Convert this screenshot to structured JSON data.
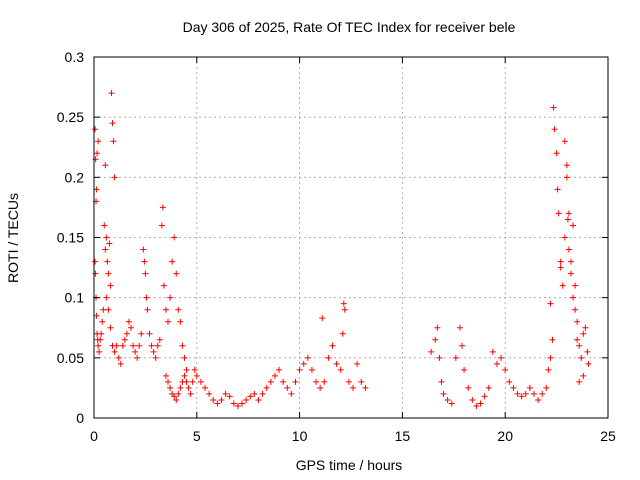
{
  "chart_data": {
    "type": "scatter",
    "title": "Day 306 of 2025, Rate Of TEC Index for receiver bele",
    "xlabel": "GPS time / hours",
    "ylabel": "ROTI / TECUs",
    "xlim": [
      0,
      25
    ],
    "ylim": [
      0,
      0.3
    ],
    "xticks": [
      0,
      5,
      10,
      15,
      20,
      25
    ],
    "yticks": [
      0,
      0.05,
      0.1,
      0.15,
      0.2,
      0.25,
      0.3
    ],
    "xtick_labels": [
      "0",
      "5",
      "10",
      "15",
      "20",
      "25"
    ],
    "ytick_labels": [
      "0",
      "0.05",
      "0.1",
      "0.15",
      "0.2",
      "0.25",
      "0.3"
    ],
    "grid": true,
    "marker": "plus",
    "color": "#ff0000",
    "points": [
      [
        0.05,
        0.24
      ],
      [
        0.08,
        0.215
      ],
      [
        0.1,
        0.18
      ],
      [
        0.12,
        0.19
      ],
      [
        0.15,
        0.22
      ],
      [
        0.2,
        0.23
      ],
      [
        0.05,
        0.13
      ],
      [
        0.07,
        0.12
      ],
      [
        0.1,
        0.1
      ],
      [
        0.12,
        0.085
      ],
      [
        0.15,
        0.07
      ],
      [
        0.18,
        0.065
      ],
      [
        0.2,
        0.06
      ],
      [
        0.25,
        0.055
      ],
      [
        0.3,
        0.065
      ],
      [
        0.35,
        0.07
      ],
      [
        0.4,
        0.08
      ],
      [
        0.45,
        0.09
      ],
      [
        0.5,
        0.16
      ],
      [
        0.55,
        0.14
      ],
      [
        0.6,
        0.15
      ],
      [
        0.65,
        0.13
      ],
      [
        0.7,
        0.12
      ],
      [
        0.75,
        0.145
      ],
      [
        0.8,
        0.11
      ],
      [
        0.85,
        0.27
      ],
      [
        0.9,
        0.245
      ],
      [
        0.95,
        0.23
      ],
      [
        1.0,
        0.2
      ],
      [
        0.55,
        0.21
      ],
      [
        0.6,
        0.1
      ],
      [
        0.7,
        0.09
      ],
      [
        0.8,
        0.075
      ],
      [
        0.9,
        0.06
      ],
      [
        1.0,
        0.055
      ],
      [
        1.1,
        0.06
      ],
      [
        1.2,
        0.05
      ],
      [
        1.3,
        0.045
      ],
      [
        1.4,
        0.06
      ],
      [
        1.5,
        0.065
      ],
      [
        1.6,
        0.07
      ],
      [
        1.7,
        0.08
      ],
      [
        1.8,
        0.075
      ],
      [
        1.9,
        0.06
      ],
      [
        2.0,
        0.055
      ],
      [
        2.1,
        0.05
      ],
      [
        2.2,
        0.06
      ],
      [
        2.3,
        0.07
      ],
      [
        2.4,
        0.14
      ],
      [
        2.45,
        0.13
      ],
      [
        2.5,
        0.12
      ],
      [
        2.55,
        0.1
      ],
      [
        2.6,
        0.09
      ],
      [
        2.7,
        0.07
      ],
      [
        2.8,
        0.06
      ],
      [
        2.9,
        0.055
      ],
      [
        3.0,
        0.05
      ],
      [
        3.1,
        0.06
      ],
      [
        3.2,
        0.065
      ],
      [
        3.3,
        0.16
      ],
      [
        3.35,
        0.175
      ],
      [
        3.4,
        0.11
      ],
      [
        3.5,
        0.09
      ],
      [
        3.6,
        0.08
      ],
      [
        3.7,
        0.1
      ],
      [
        3.8,
        0.13
      ],
      [
        3.9,
        0.15
      ],
      [
        4.0,
        0.12
      ],
      [
        4.1,
        0.09
      ],
      [
        4.2,
        0.08
      ],
      [
        4.3,
        0.06
      ],
      [
        4.4,
        0.05
      ],
      [
        4.5,
        0.04
      ],
      [
        3.5,
        0.035
      ],
      [
        3.6,
        0.03
      ],
      [
        3.7,
        0.025
      ],
      [
        3.8,
        0.02
      ],
      [
        3.9,
        0.018
      ],
      [
        4.0,
        0.015
      ],
      [
        4.1,
        0.02
      ],
      [
        4.2,
        0.025
      ],
      [
        4.3,
        0.03
      ],
      [
        4.4,
        0.035
      ],
      [
        4.5,
        0.03
      ],
      [
        4.6,
        0.025
      ],
      [
        4.7,
        0.02
      ],
      [
        4.8,
        0.03
      ],
      [
        4.9,
        0.04
      ],
      [
        5.0,
        0.035
      ],
      [
        5.2,
        0.03
      ],
      [
        5.4,
        0.025
      ],
      [
        5.6,
        0.02
      ],
      [
        5.8,
        0.015
      ],
      [
        6.0,
        0.012
      ],
      [
        6.2,
        0.015
      ],
      [
        6.4,
        0.02
      ],
      [
        6.6,
        0.018
      ],
      [
        6.8,
        0.012
      ],
      [
        7.0,
        0.01
      ],
      [
        7.2,
        0.012
      ],
      [
        7.4,
        0.015
      ],
      [
        7.6,
        0.018
      ],
      [
        7.8,
        0.02
      ],
      [
        8.0,
        0.015
      ],
      [
        8.2,
        0.02
      ],
      [
        8.4,
        0.025
      ],
      [
        8.6,
        0.03
      ],
      [
        8.8,
        0.035
      ],
      [
        9.0,
        0.04
      ],
      [
        9.2,
        0.03
      ],
      [
        9.4,
        0.025
      ],
      [
        9.6,
        0.02
      ],
      [
        9.8,
        0.03
      ],
      [
        10.0,
        0.04
      ],
      [
        10.2,
        0.045
      ],
      [
        10.4,
        0.05
      ],
      [
        10.6,
        0.04
      ],
      [
        10.8,
        0.03
      ],
      [
        11.0,
        0.025
      ],
      [
        11.2,
        0.03
      ],
      [
        11.4,
        0.05
      ],
      [
        11.6,
        0.06
      ],
      [
        11.8,
        0.045
      ],
      [
        12.0,
        0.04
      ],
      [
        12.1,
        0.07
      ],
      [
        12.15,
        0.095
      ],
      [
        12.2,
        0.09
      ],
      [
        12.4,
        0.03
      ],
      [
        12.6,
        0.025
      ],
      [
        12.8,
        0.045
      ],
      [
        13.0,
        0.03
      ],
      [
        13.2,
        0.025
      ],
      [
        11.1,
        0.083
      ],
      [
        16.4,
        0.055
      ],
      [
        16.6,
        0.065
      ],
      [
        16.7,
        0.075
      ],
      [
        16.8,
        0.05
      ],
      [
        16.9,
        0.03
      ],
      [
        17.0,
        0.02
      ],
      [
        17.2,
        0.015
      ],
      [
        17.4,
        0.012
      ],
      [
        17.6,
        0.05
      ],
      [
        17.8,
        0.075
      ],
      [
        17.9,
        0.06
      ],
      [
        18.0,
        0.04
      ],
      [
        18.2,
        0.025
      ],
      [
        18.4,
        0.015
      ],
      [
        18.6,
        0.01
      ],
      [
        18.8,
        0.012
      ],
      [
        19.0,
        0.018
      ],
      [
        19.2,
        0.025
      ],
      [
        19.4,
        0.055
      ],
      [
        19.6,
        0.045
      ],
      [
        19.8,
        0.05
      ],
      [
        20.0,
        0.04
      ],
      [
        20.2,
        0.03
      ],
      [
        20.4,
        0.025
      ],
      [
        20.6,
        0.02
      ],
      [
        20.8,
        0.018
      ],
      [
        21.0,
        0.02
      ],
      [
        21.2,
        0.025
      ],
      [
        21.4,
        0.02
      ],
      [
        21.6,
        0.015
      ],
      [
        21.8,
        0.02
      ],
      [
        22.0,
        0.025
      ],
      [
        22.1,
        0.04
      ],
      [
        22.2,
        0.05
      ],
      [
        22.3,
        0.065
      ],
      [
        22.35,
        0.258
      ],
      [
        22.4,
        0.24
      ],
      [
        22.5,
        0.22
      ],
      [
        22.55,
        0.19
      ],
      [
        22.6,
        0.17
      ],
      [
        22.7,
        0.13
      ],
      [
        22.8,
        0.11
      ],
      [
        22.9,
        0.23
      ],
      [
        23.0,
        0.2
      ],
      [
        23.05,
        0.165
      ],
      [
        23.1,
        0.14
      ],
      [
        23.2,
        0.12
      ],
      [
        23.3,
        0.1
      ],
      [
        23.4,
        0.09
      ],
      [
        23.5,
        0.08
      ],
      [
        23.6,
        0.06
      ],
      [
        23.7,
        0.05
      ],
      [
        23.8,
        0.07
      ],
      [
        23.9,
        0.075
      ],
      [
        24.0,
        0.055
      ],
      [
        24.05,
        0.045
      ],
      [
        23.0,
        0.21
      ],
      [
        23.1,
        0.17
      ],
      [
        22.9,
        0.15
      ],
      [
        23.2,
        0.13
      ],
      [
        23.4,
        0.11
      ],
      [
        23.6,
        0.03
      ],
      [
        23.8,
        0.035
      ],
      [
        22.2,
        0.095
      ],
      [
        22.7,
        0.125
      ],
      [
        23.3,
        0.16
      ],
      [
        23.5,
        0.065
      ]
    ]
  }
}
